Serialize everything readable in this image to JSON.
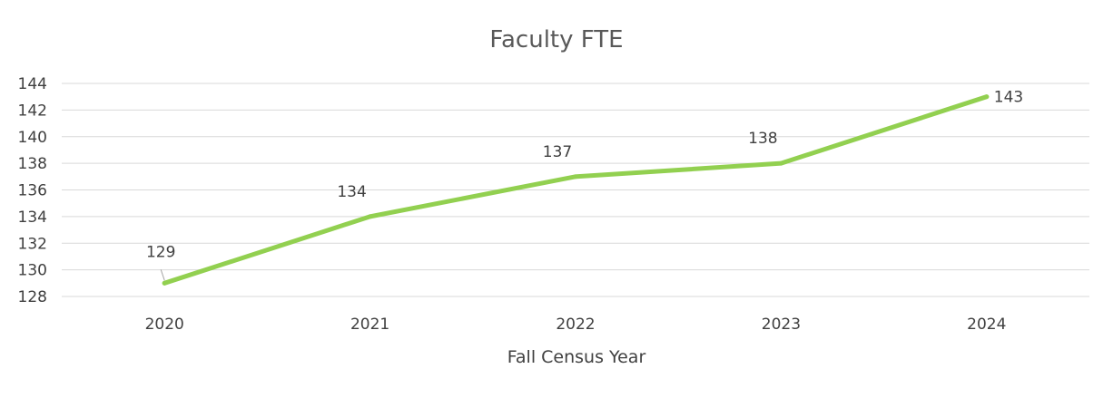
{
  "chart_data": {
    "type": "line",
    "title": "Faculty FTE",
    "xlabel": "Fall Census Year",
    "ylabel": "",
    "categories": [
      "2020",
      "2021",
      "2022",
      "2023",
      "2024"
    ],
    "series": [
      {
        "values": [
          129,
          134,
          137,
          138,
          143
        ],
        "color": "#92d050"
      }
    ],
    "ylim": [
      128,
      144
    ],
    "yticks": [
      128,
      130,
      132,
      134,
      136,
      138,
      140,
      142,
      144
    ],
    "grid": true,
    "data_labels": true,
    "legend": "none"
  }
}
